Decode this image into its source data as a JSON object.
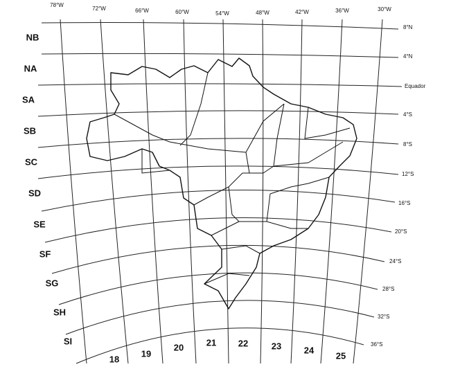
{
  "longitude_labels": [
    "78°W",
    "72°W",
    "66°W",
    "60°W",
    "54°W",
    "48°W",
    "42°W",
    "36°W",
    "30°W"
  ],
  "latitude_labels": [
    "8°N",
    "4°N",
    "Equador",
    "4°S",
    "8°S",
    "12°S",
    "16°S",
    "20°S",
    "24°S",
    "28°S",
    "32°S",
    "36°S"
  ],
  "row_labels": [
    "NB",
    "NA",
    "SA",
    "SB",
    "SC",
    "SD",
    "SE",
    "SF",
    "SG",
    "SH",
    "SI"
  ],
  "zone_numbers": [
    "18",
    "19",
    "20",
    "21",
    "22",
    "23",
    "24",
    "25"
  ]
}
